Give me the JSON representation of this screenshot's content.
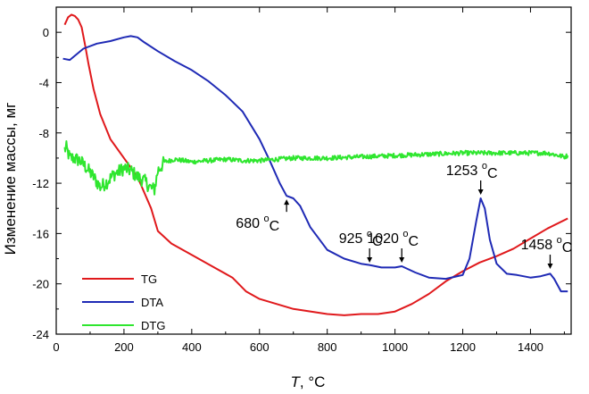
{
  "chart_data": {
    "type": "line",
    "title": "",
    "xlabel_var": "T",
    "xlabel_unit": ", °C",
    "ylabel": "Изменение массы, мг",
    "xlim": [
      0,
      1520
    ],
    "ylim": [
      -24,
      2
    ],
    "xticks": [
      0,
      200,
      400,
      600,
      800,
      1000,
      1200,
      1400
    ],
    "yticks": [
      0,
      -4,
      -8,
      -12,
      -16,
      -20,
      -24
    ],
    "legend_position": "bottom-left",
    "series": [
      {
        "name": "TG",
        "color": "#e0191c",
        "x": [
          25,
          35,
          45,
          55,
          65,
          75,
          85,
          95,
          110,
          130,
          160,
          200,
          240,
          280,
          300,
          340,
          400,
          460,
          520,
          560,
          600,
          700,
          800,
          850,
          900,
          950,
          1000,
          1050,
          1100,
          1150,
          1200,
          1250,
          1300,
          1350,
          1400,
          1450,
          1510
        ],
        "values": [
          0.6,
          1.2,
          1.4,
          1.3,
          1.0,
          0.4,
          -1.0,
          -2.5,
          -4.5,
          -6.5,
          -8.5,
          -10.0,
          -11.5,
          -14.0,
          -15.8,
          -16.8,
          -17.7,
          -18.6,
          -19.5,
          -20.6,
          -21.2,
          -22.0,
          -22.4,
          -22.5,
          -22.4,
          -22.4,
          -22.2,
          -21.6,
          -20.8,
          -19.8,
          -19.0,
          -18.3,
          -17.8,
          -17.2,
          -16.4,
          -15.6,
          -14.8
        ]
      },
      {
        "name": "DTA",
        "color": "#1f2ab5",
        "x": [
          20,
          40,
          80,
          120,
          160,
          200,
          220,
          240,
          260,
          300,
          350,
          400,
          450,
          500,
          550,
          600,
          630,
          660,
          680,
          700,
          720,
          750,
          800,
          850,
          900,
          925,
          960,
          1000,
          1020,
          1060,
          1100,
          1150,
          1200,
          1220,
          1240,
          1253,
          1265,
          1280,
          1300,
          1330,
          1360,
          1400,
          1430,
          1458,
          1470,
          1490,
          1510
        ],
        "values": [
          -2.1,
          -2.2,
          -1.3,
          -0.9,
          -0.7,
          -0.4,
          -0.3,
          -0.4,
          -0.8,
          -1.5,
          -2.3,
          -3.0,
          -3.9,
          -5.0,
          -6.3,
          -8.5,
          -10.2,
          -12.0,
          -13.0,
          -13.2,
          -13.8,
          -15.5,
          -17.3,
          -18.0,
          -18.4,
          -18.5,
          -18.7,
          -18.7,
          -18.6,
          -19.1,
          -19.5,
          -19.6,
          -19.3,
          -18.0,
          -15.0,
          -13.2,
          -14.0,
          -16.5,
          -18.4,
          -19.2,
          -19.3,
          -19.5,
          -19.4,
          -19.2,
          -19.6,
          -20.6,
          -20.6
        ]
      },
      {
        "name": "DTG",
        "color": "#2fe62f",
        "noisy": true,
        "x": [
          25,
          30,
          40,
          50,
          70,
          90,
          110,
          130,
          150,
          170,
          190,
          200,
          220,
          240,
          260,
          280,
          290,
          300,
          320,
          350,
          400,
          450,
          500,
          550,
          600,
          700,
          800,
          900,
          1000,
          1100,
          1200,
          1300,
          1400,
          1450,
          1500,
          1510
        ],
        "values": [
          -9.3,
          -9.2,
          -10.0,
          -10.0,
          -10.2,
          -10.8,
          -11.5,
          -12.3,
          -11.9,
          -11.3,
          -11.0,
          -10.8,
          -11.0,
          -11.5,
          -11.8,
          -12.4,
          -12.5,
          -11.0,
          -10.3,
          -10.1,
          -10.3,
          -10.2,
          -10.1,
          -10.2,
          -10.2,
          -10.0,
          -10.0,
          -9.9,
          -9.8,
          -9.7,
          -9.6,
          -9.6,
          -9.6,
          -9.6,
          -9.9,
          -9.8
        ]
      }
    ],
    "annotations": [
      {
        "label": "680 ",
        "unit_sup": "o",
        "unit_sub": "C",
        "x": 680,
        "y": -13.0,
        "arrow": "up"
      },
      {
        "label": "925 ",
        "unit_sup": "o",
        "unit_sub": "C",
        "x": 925,
        "y": -18.6,
        "arrow": "down"
      },
      {
        "label": "1020 ",
        "unit_sup": "o",
        "unit_sub": "C",
        "x": 1020,
        "y": -18.6,
        "arrow": "down"
      },
      {
        "label": "1253 ",
        "unit_sup": "o",
        "unit_sub": "C",
        "x": 1253,
        "y": -13.2,
        "arrow": "down"
      },
      {
        "label": "1458 ",
        "unit_sup": "o",
        "unit_sub": "C",
        "x": 1458,
        "y": -19.1,
        "arrow": "down"
      }
    ]
  }
}
